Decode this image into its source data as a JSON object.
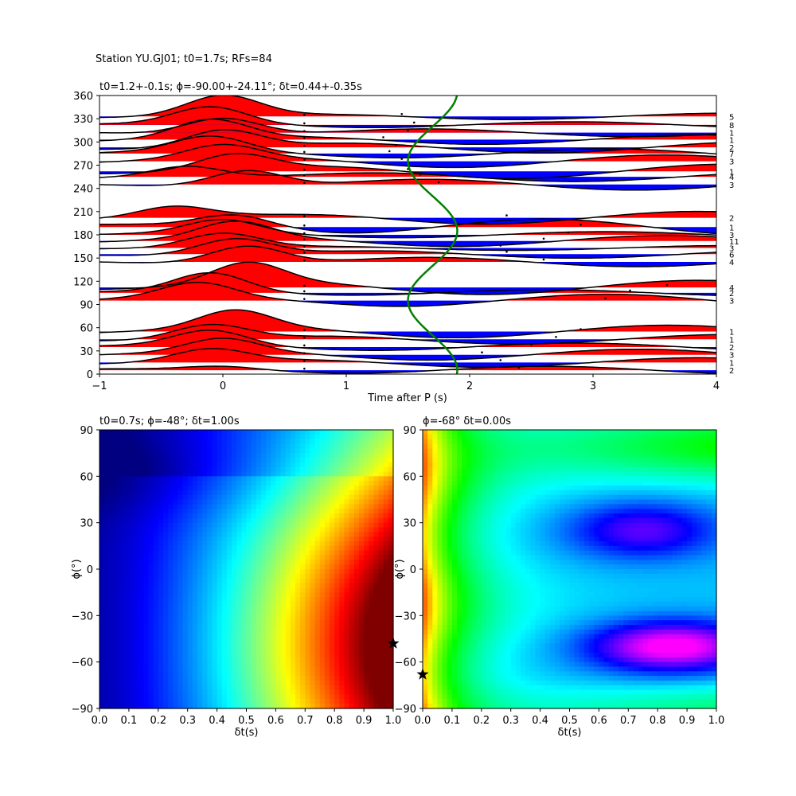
{
  "figure": {
    "title": "Station YU.GJ01; t0=1.7s; RFs=84"
  },
  "chart_data": [
    {
      "id": "rf_traces",
      "type": "line",
      "title": "t0=1.2+-0.1s; ϕ=-90.00+-24.11°; δt=0.44+-0.35s",
      "xlabel": "Time after P (s)",
      "ylabel": "",
      "xlim": [
        -1,
        4
      ],
      "ylim": [
        0,
        360
      ],
      "xticks": [
        "−1",
        "0",
        "1",
        "2",
        "3",
        "4"
      ],
      "yticks": [
        "0",
        "30",
        "60",
        "90",
        "120",
        "150",
        "180",
        "210",
        "240",
        "270",
        "300",
        "330",
        "360"
      ],
      "trace_fill_positive": "#ff0000",
      "trace_fill_negative": "#0000ff",
      "trace_line_color": "#000000",
      "overlay_curve_color": "#008000",
      "overlay_curve": {
        "center": 1.7,
        "amplitude": 0.2,
        "period_deg": 180,
        "phase_deg": 80
      },
      "traces": [
        {
          "baz": 5,
          "count": "2",
          "pulse": {
            "t": 0.0,
            "a": 5
          },
          "tail": -5,
          "mark": 2.4
        },
        {
          "baz": 15,
          "count": "1",
          "pulse": {
            "t": -0.1,
            "a": 16
          },
          "tail": 6,
          "mark": 2.25
        },
        {
          "baz": 25,
          "count": "3",
          "pulse": {
            "t": 0.0,
            "a": 18
          },
          "tail": 7,
          "mark": 2.1
        },
        {
          "baz": 35,
          "count": "2",
          "pulse": {
            "t": -0.1,
            "a": 20
          },
          "tail": 5,
          "mark": 2.5
        },
        {
          "baz": 45,
          "count": "1",
          "pulse": {
            "t": -0.1,
            "a": 18
          },
          "tail": -6,
          "mark": 2.7
        },
        {
          "baz": 55,
          "count": "1",
          "pulse": {
            "t": 0.1,
            "a": 24
          },
          "tail": -8,
          "mark": 2.9
        },
        {
          "baz": 95,
          "count": "3",
          "pulse": {
            "t": -0.2,
            "a": 20
          },
          "tail": -8,
          "mark": 3.1
        },
        {
          "baz": 105,
          "count": "2",
          "pulse": {
            "t": -0.1,
            "a": 25
          },
          "tail": -4,
          "mark": 3.3
        },
        {
          "baz": 112,
          "count": "4",
          "pulse": {
            "t": 0.2,
            "a": 28
          },
          "tail": 9,
          "mark": 3.6
        },
        {
          "baz": 145,
          "count": "4",
          "pulse": {
            "t": 0.2,
            "a": 22
          },
          "tail": -6,
          "mark": 2.6
        },
        {
          "baz": 155,
          "count": "6",
          "pulse": {
            "t": 0.1,
            "a": 20
          },
          "tail": -5,
          "mark": 2.3
        },
        {
          "baz": 163,
          "count": "3",
          "pulse": {
            "t": 0.0,
            "a": 18
          },
          "tail": -3,
          "mark": 2.25
        },
        {
          "baz": 172,
          "count": "11",
          "pulse": {
            "t": 0.1,
            "a": 22
          },
          "tail": -7,
          "mark": 2.6
        },
        {
          "baz": 180,
          "count": "3",
          "pulse": {
            "t": 0.0,
            "a": 18
          },
          "tail": -4,
          "mark": 2.8
        },
        {
          "baz": 190,
          "count": "1",
          "pulse": {
            "t": 0.1,
            "a": 16
          },
          "tail": -10,
          "mark": 2.9
        },
        {
          "baz": 202,
          "count": "2",
          "pulse": {
            "t": -0.4,
            "a": 14
          },
          "tail": 8,
          "mark": 2.3
        },
        {
          "baz": 245,
          "count": "3",
          "pulse": {
            "t": 0.2,
            "a": 20
          },
          "tail": -7,
          "mark": 1.75
        },
        {
          "baz": 255,
          "count": "4",
          "pulse": {
            "t": -0.3,
            "a": 15
          },
          "tail": -6,
          "mark": 1.6
        },
        {
          "baz": 262,
          "count": "1",
          "pulse": {
            "t": 0.1,
            "a": 20
          },
          "tail": -9,
          "mark": 1.5
        },
        {
          "baz": 275,
          "count": "3",
          "pulse": {
            "t": 0.0,
            "a": 18
          },
          "tail": -8,
          "mark": 1.45
        },
        {
          "baz": 285,
          "count": "7",
          "pulse": {
            "t": -0.1,
            "a": 20
          },
          "tail": -6,
          "mark": 1.35
        },
        {
          "baz": 293,
          "count": "2",
          "pulse": {
            "t": 0.0,
            "a": 22
          },
          "tail": 7,
          "mark": 1.4
        },
        {
          "baz": 303,
          "count": "1",
          "pulse": {
            "t": -0.1,
            "a": 24
          },
          "tail": 6,
          "mark": 1.3
        },
        {
          "baz": 312,
          "count": "1",
          "pulse": {
            "t": 0.0,
            "a": 20
          },
          "tail": -5,
          "mark": 1.5
        },
        {
          "baz": 322,
          "count": "8",
          "pulse": {
            "t": -0.1,
            "a": 22
          },
          "tail": 4,
          "mark": 1.55
        },
        {
          "baz": 333,
          "count": "5",
          "pulse": {
            "t": 0.0,
            "a": 26
          },
          "tail": -4,
          "mark": 1.45
        }
      ]
    },
    {
      "id": "grid_search_left",
      "type": "heatmap",
      "title": "t0=0.7s; ϕ=-48°; δt=1.00s",
      "xlabel": "δt(s)",
      "ylabel": "ϕ(°)",
      "xlim": [
        0.0,
        1.0
      ],
      "ylim": [
        -90,
        90
      ],
      "xticks": [
        "0.0",
        "0.1",
        "0.2",
        "0.3",
        "0.4",
        "0.5",
        "0.6",
        "0.7",
        "0.8",
        "0.9",
        "1.0"
      ],
      "yticks": [
        "−90",
        "−60",
        "−30",
        "0",
        "30",
        "60",
        "90"
      ],
      "colormap": "jet",
      "best": {
        "dt": 1.0,
        "phi": -48
      }
    },
    {
      "id": "grid_search_right",
      "type": "heatmap",
      "title": "ϕ=-68° δt=0.00s",
      "xlabel": "δt(s)",
      "ylabel": "ϕ(°)",
      "xlim": [
        0.0,
        1.0
      ],
      "ylim": [
        -90,
        90
      ],
      "xticks": [
        "0.0",
        "0.1",
        "0.2",
        "0.3",
        "0.4",
        "0.5",
        "0.6",
        "0.7",
        "0.8",
        "0.9",
        "1.0"
      ],
      "yticks": [
        "−90",
        "−60",
        "−30",
        "0",
        "30",
        "60",
        "90"
      ],
      "colormap": "gist_rainbow",
      "best": {
        "dt": 0.0,
        "phi": -68
      }
    }
  ]
}
